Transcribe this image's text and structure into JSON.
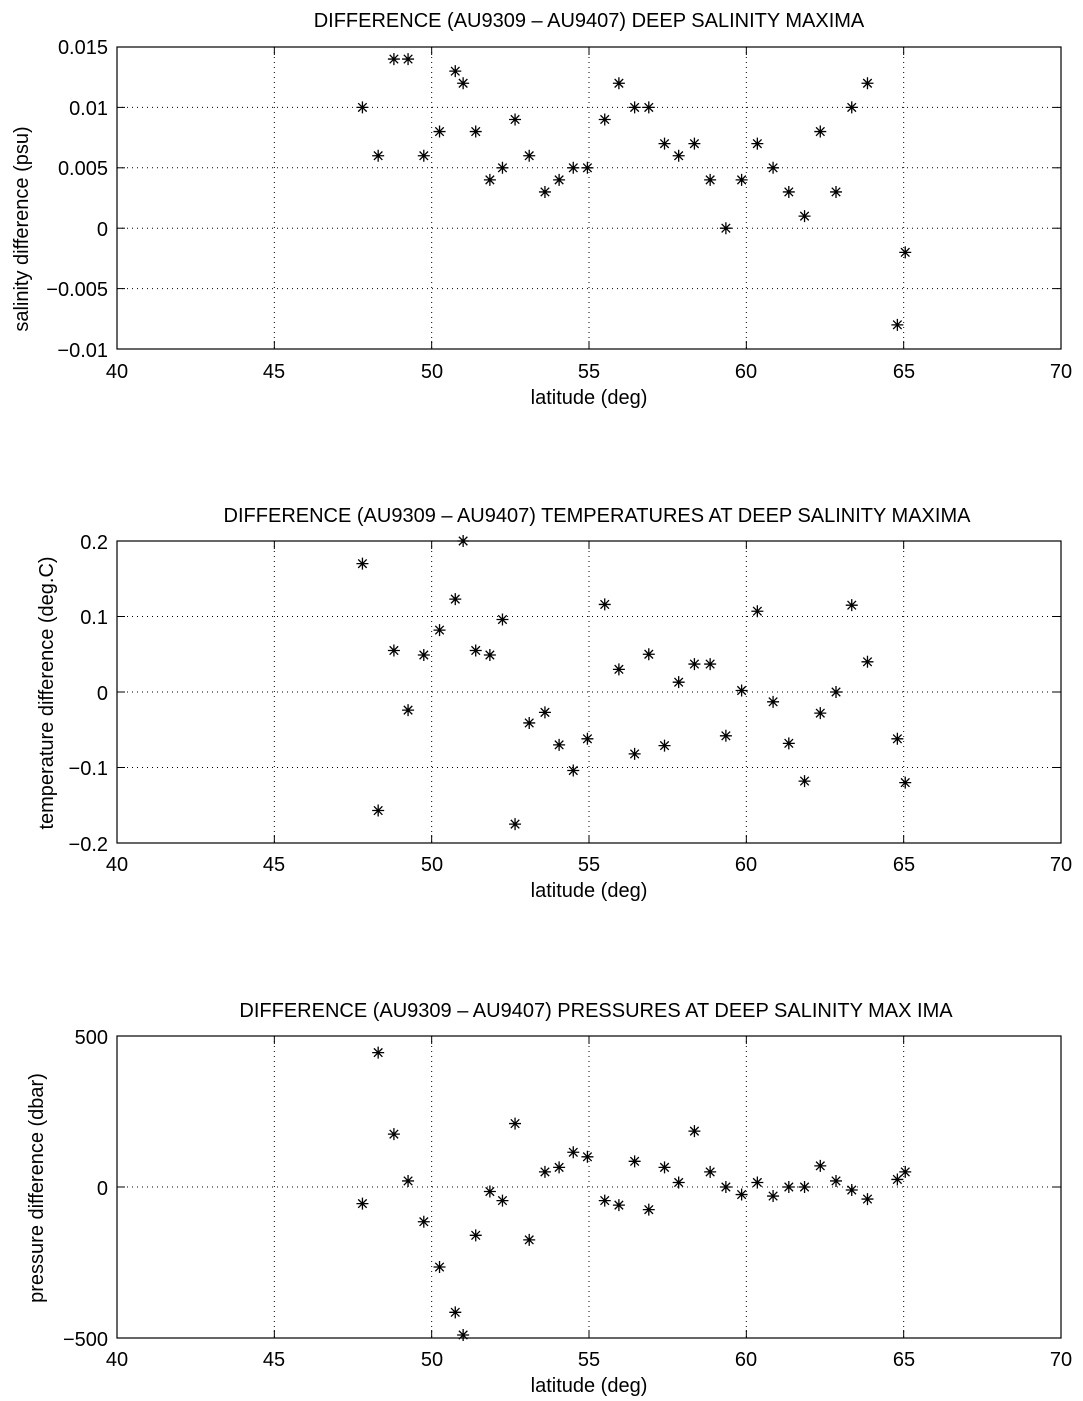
{
  "charts": [
    {
      "title": "DIFFERENCE (AU9309 – AU9407) DEEP SALINITY MAXIMA",
      "xlabel": "latitude (deg)",
      "ylabel": "salinity difference (psu)",
      "xticks": [
        "40",
        "45",
        "50",
        "55",
        "60",
        "65",
        "70"
      ],
      "yticks": [
        "0.015",
        "0.01",
        "0.005",
        "0",
        "−0.005",
        "−0.01"
      ]
    },
    {
      "title": "DIFFERENCE (AU9309 – AU9407) TEMPERATURES AT DEEP SALINITY  MAXIMA",
      "xlabel": "latitude (deg)",
      "ylabel": "temperature difference (deg.C)",
      "xticks": [
        "40",
        "45",
        "50",
        "55",
        "60",
        "65",
        "70"
      ],
      "yticks": [
        "0.2",
        "0.1",
        "0",
        "−0.1",
        "−0.2"
      ]
    },
    {
      "title": "DIFFERENCE (AU9309 – AU9407) PRESSURES AT DEEP SALINITY MAX IMA",
      "xlabel": "latitude (deg)",
      "ylabel": "pressure difference (dbar)",
      "xticks": [
        "40",
        "45",
        "50",
        "55",
        "60",
        "65",
        "70"
      ],
      "yticks": [
        "500",
        "0",
        "−500"
      ]
    }
  ],
  "chart_data": [
    {
      "type": "scatter",
      "marker": "asterisk",
      "title": "DIFFERENCE (AU9309 – AU9407) DEEP SALINITY MAXIMA",
      "xlabel": "latitude (deg)",
      "ylabel": "salinity difference (psu)",
      "xlim": [
        40,
        70
      ],
      "ylim": [
        -0.01,
        0.015
      ],
      "xtick_values": [
        40,
        45,
        50,
        55,
        60,
        65,
        70
      ],
      "ytick_values": [
        0.015,
        0.01,
        0.005,
        0,
        -0.005,
        -0.01
      ],
      "grid": true,
      "points": [
        [
          47.8,
          0.01
        ],
        [
          48.3,
          0.006
        ],
        [
          48.8,
          0.014
        ],
        [
          49.25,
          0.014
        ],
        [
          49.75,
          0.006
        ],
        [
          50.25,
          0.008
        ],
        [
          50.75,
          0.013
        ],
        [
          51.0,
          0.012
        ],
        [
          51.4,
          0.008
        ],
        [
          51.85,
          0.004
        ],
        [
          52.25,
          0.005
        ],
        [
          52.65,
          0.009
        ],
        [
          53.1,
          0.006
        ],
        [
          53.6,
          0.003
        ],
        [
          54.05,
          0.004
        ],
        [
          54.5,
          0.005
        ],
        [
          54.95,
          0.005
        ],
        [
          55.5,
          0.009
        ],
        [
          55.95,
          0.012
        ],
        [
          56.45,
          0.01
        ],
        [
          56.9,
          0.01
        ],
        [
          57.4,
          0.007
        ],
        [
          57.85,
          0.006
        ],
        [
          58.35,
          0.007
        ],
        [
          58.85,
          0.004
        ],
        [
          59.35,
          0.0
        ],
        [
          59.85,
          0.004
        ],
        [
          60.35,
          0.007
        ],
        [
          60.85,
          0.005
        ],
        [
          61.35,
          0.003
        ],
        [
          61.85,
          0.001
        ],
        [
          62.35,
          0.008
        ],
        [
          62.85,
          0.003
        ],
        [
          63.35,
          0.01
        ],
        [
          63.85,
          0.012
        ],
        [
          64.8,
          -0.008
        ],
        [
          65.05,
          -0.002
        ]
      ]
    },
    {
      "type": "scatter",
      "marker": "asterisk",
      "title": "DIFFERENCE (AU9309 – AU9407) TEMPERATURES AT DEEP SALINITY  MAXIMA",
      "xlabel": "latitude (deg)",
      "ylabel": "temperature difference (deg.C)",
      "xlim": [
        40,
        70
      ],
      "ylim": [
        -0.2,
        0.2
      ],
      "xtick_values": [
        40,
        45,
        50,
        55,
        60,
        65,
        70
      ],
      "ytick_values": [
        0.2,
        0.1,
        0,
        -0.1,
        -0.2
      ],
      "grid": true,
      "points": [
        [
          47.8,
          0.17
        ],
        [
          48.3,
          -0.157
        ],
        [
          48.8,
          0.055
        ],
        [
          49.25,
          -0.024
        ],
        [
          49.75,
          0.049
        ],
        [
          50.25,
          0.082
        ],
        [
          50.75,
          0.123
        ],
        [
          51.0,
          0.2
        ],
        [
          51.4,
          0.055
        ],
        [
          51.85,
          0.049
        ],
        [
          52.25,
          0.096
        ],
        [
          52.65,
          -0.175
        ],
        [
          53.1,
          -0.041
        ],
        [
          53.6,
          -0.027
        ],
        [
          54.05,
          -0.07
        ],
        [
          54.5,
          -0.104
        ],
        [
          54.95,
          -0.062
        ],
        [
          55.5,
          0.116
        ],
        [
          55.95,
          0.03
        ],
        [
          56.45,
          -0.082
        ],
        [
          56.9,
          0.05
        ],
        [
          57.4,
          -0.071
        ],
        [
          57.85,
          0.013
        ],
        [
          58.35,
          0.037
        ],
        [
          58.85,
          0.037
        ],
        [
          59.35,
          -0.058
        ],
        [
          59.85,
          0.002
        ],
        [
          60.35,
          0.107
        ],
        [
          60.85,
          -0.013
        ],
        [
          61.35,
          -0.068
        ],
        [
          61.85,
          -0.118
        ],
        [
          62.35,
          -0.028
        ],
        [
          62.85,
          0.0
        ],
        [
          63.35,
          0.115
        ],
        [
          63.85,
          0.04
        ],
        [
          64.8,
          -0.062
        ],
        [
          65.05,
          -0.12
        ]
      ]
    },
    {
      "type": "scatter",
      "marker": "asterisk",
      "title": "DIFFERENCE (AU9309 – AU9407) PRESSURES AT DEEP SALINITY MAX IMA",
      "xlabel": "latitude (deg)",
      "ylabel": "pressure difference (dbar)",
      "xlim": [
        40,
        70
      ],
      "ylim": [
        -500,
        500
      ],
      "xtick_values": [
        40,
        45,
        50,
        55,
        60,
        65,
        70
      ],
      "ytick_values": [
        500,
        0,
        -500
      ],
      "grid": true,
      "points": [
        [
          47.8,
          -55
        ],
        [
          48.3,
          445
        ],
        [
          48.8,
          175
        ],
        [
          49.25,
          20
        ],
        [
          49.75,
          -115
        ],
        [
          50.25,
          -265
        ],
        [
          50.75,
          -415
        ],
        [
          51.0,
          -490
        ],
        [
          51.4,
          -160
        ],
        [
          51.85,
          -15
        ],
        [
          52.25,
          -45
        ],
        [
          52.65,
          210
        ],
        [
          53.1,
          -175
        ],
        [
          53.6,
          50
        ],
        [
          54.05,
          65
        ],
        [
          54.5,
          115
        ],
        [
          54.95,
          100
        ],
        [
          55.5,
          -45
        ],
        [
          55.95,
          -60
        ],
        [
          56.45,
          85
        ],
        [
          56.9,
          -75
        ],
        [
          57.4,
          65
        ],
        [
          57.85,
          15
        ],
        [
          58.35,
          185
        ],
        [
          58.85,
          50
        ],
        [
          59.35,
          0
        ],
        [
          59.85,
          -25
        ],
        [
          60.35,
          15
        ],
        [
          60.85,
          -30
        ],
        [
          61.35,
          0
        ],
        [
          61.85,
          0
        ],
        [
          62.35,
          70
        ],
        [
          62.85,
          20
        ],
        [
          63.35,
          -10
        ],
        [
          63.85,
          -40
        ],
        [
          64.8,
          25
        ],
        [
          65.05,
          50
        ]
      ]
    }
  ]
}
